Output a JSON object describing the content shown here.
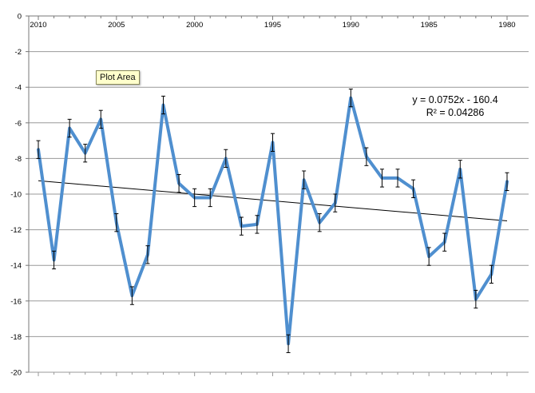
{
  "tooltip": {
    "label": "Plot Area"
  },
  "chart_data": {
    "type": "line",
    "title": "",
    "xlabel": "",
    "ylabel": "",
    "x_reversed": true,
    "xlim": [
      1980,
      2010
    ],
    "ylim": [
      -20,
      0
    ],
    "x_ticks": [
      2010,
      2005,
      2000,
      1995,
      1990,
      1985,
      1980
    ],
    "y_ticks": [
      0,
      -2,
      -4,
      -6,
      -8,
      -10,
      -12,
      -14,
      -16,
      -18,
      -20
    ],
    "grid": true,
    "legend": "none",
    "x_axis_position": "top",
    "series": [
      {
        "color": "#4f8fcf",
        "x": [
          2010,
          2009,
          2008,
          2007,
          2006,
          2005,
          2004,
          2003,
          2002,
          2001,
          2000,
          1999,
          1998,
          1997,
          1996,
          1995,
          1994,
          1993,
          1992,
          1991,
          1990,
          1989,
          1988,
          1987,
          1986,
          1985,
          1984,
          1983,
          1982,
          1981,
          1980
        ],
        "y": [
          -7.5,
          -13.7,
          -6.3,
          -7.7,
          -5.8,
          -11.6,
          -15.7,
          -13.4,
          -5.0,
          -9.4,
          -10.2,
          -10.2,
          -8.0,
          -11.8,
          -11.7,
          -7.1,
          -18.4,
          -9.2,
          -11.6,
          -10.5,
          -4.6,
          -7.9,
          -9.1,
          -9.1,
          -9.7,
          -13.5,
          -12.7,
          -8.6,
          -15.9,
          -14.5,
          -9.3
        ],
        "error": 0.5
      }
    ],
    "trendline": {
      "type": "linear",
      "slope": 0.0752,
      "intercept": -160.4,
      "color": "#000000",
      "equation_label": "y = 0.0752x - 160.4",
      "r2_label": "R² = 0.04286"
    }
  }
}
